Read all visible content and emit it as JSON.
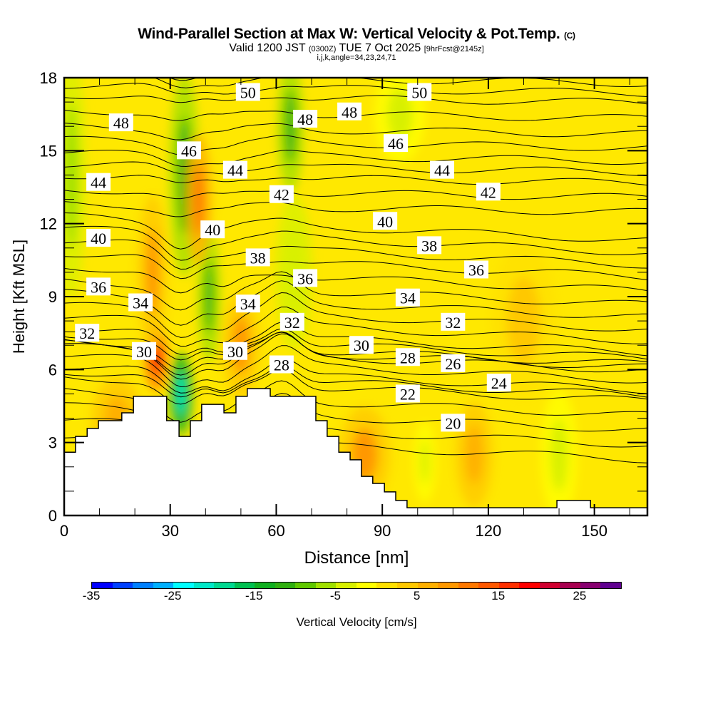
{
  "chart_data": {
    "type": "heatmap",
    "title": "Wind-Parallel Section at Max W: Vertical Velocity & Pot.Temp.",
    "title_mark": "(C)",
    "subtitle_main": "Valid 1200 JST",
    "subtitle_utc": "(0300Z)",
    "subtitle_date": "TUE 7 Oct 2025",
    "subtitle_fcst": "[9hrFcst@2145z]",
    "subtitle2": "i,j,k,angle=34,23,24,71",
    "xlabel": "Distance [nm]",
    "ylabel": "Height [Kft MSL]",
    "xlim": [
      0,
      165
    ],
    "ylim": [
      0,
      18
    ],
    "xticks": [
      "0",
      "30",
      "60",
      "90",
      "120",
      "150"
    ],
    "yticks": [
      "0",
      "3",
      "6",
      "9",
      "12",
      "15",
      "18"
    ],
    "colorbar": {
      "label": "Vertical Velocity [cm/s]",
      "range": [
        -35,
        30
      ],
      "step": 2.5,
      "tick_labels": [
        "-35",
        "-25",
        "-15",
        "-5",
        "5",
        "15",
        "25"
      ],
      "colors": [
        "#0000ff",
        "#0040ff",
        "#0080ff",
        "#00b0ff",
        "#00ffff",
        "#00e8c8",
        "#00d890",
        "#00c050",
        "#10b020",
        "#30b010",
        "#60c800",
        "#a0e000",
        "#d8f000",
        "#ffff00",
        "#ffe000",
        "#ffc800",
        "#ffb000",
        "#ff9800",
        "#ff7800",
        "#ff5800",
        "#ff3000",
        "#ff0000",
        "#d00030",
        "#a80050",
        "#880070",
        "#600090"
      ]
    },
    "w_features": [
      {
        "x": 2,
        "y": 14,
        "rx": 3,
        "ry": 5,
        "w": -7
      },
      {
        "x": 26,
        "y": 6.5,
        "rx": 2,
        "ry": 1.2,
        "w": 18
      },
      {
        "x": 25,
        "y": 10,
        "rx": 3,
        "ry": 3,
        "w": 8
      },
      {
        "x": 33,
        "y": 5,
        "rx": 2,
        "ry": 1.5,
        "w": -22
      },
      {
        "x": 34,
        "y": 14,
        "rx": 3,
        "ry": 4,
        "w": -12
      },
      {
        "x": 41,
        "y": 9,
        "rx": 2,
        "ry": 2.5,
        "w": -12
      },
      {
        "x": 38,
        "y": 13,
        "rx": 2.5,
        "ry": 2.5,
        "w": 10
      },
      {
        "x": 64,
        "y": 16,
        "rx": 2.5,
        "ry": 2.5,
        "w": -12
      },
      {
        "x": 65,
        "y": 10,
        "rx": 4,
        "ry": 3,
        "w": -5
      },
      {
        "x": 50,
        "y": 7,
        "rx": 4,
        "ry": 2,
        "w": 8
      },
      {
        "x": 85,
        "y": 2.5,
        "rx": 6,
        "ry": 1.8,
        "w": 8
      },
      {
        "x": 102,
        "y": 2.2,
        "rx": 2,
        "ry": 1.5,
        "w": -4
      },
      {
        "x": 116,
        "y": 2.5,
        "rx": 4,
        "ry": 2,
        "w": 5
      },
      {
        "x": 140,
        "y": 2.5,
        "rx": 4,
        "ry": 2.5,
        "w": -4
      },
      {
        "x": 95,
        "y": 16.5,
        "rx": 6,
        "ry": 1.8,
        "w": -4
      },
      {
        "x": 130,
        "y": 8,
        "rx": 8,
        "ry": 3,
        "w": 3
      },
      {
        "x": 15,
        "y": 4,
        "rx": 6,
        "ry": 1.5,
        "w": 5
      }
    ],
    "terrain": [
      [
        0,
        2.6
      ],
      [
        3.2,
        2.6
      ],
      [
        3.2,
        3.25
      ],
      [
        6.5,
        3.25
      ],
      [
        6.5,
        3.58
      ],
      [
        9.7,
        3.58
      ],
      [
        9.7,
        3.9
      ],
      [
        16.3,
        3.9
      ],
      [
        16.3,
        4.22
      ],
      [
        19.6,
        4.22
      ],
      [
        19.6,
        4.9
      ],
      [
        29,
        4.9
      ],
      [
        29,
        3.9
      ],
      [
        32.5,
        3.9
      ],
      [
        32.5,
        3.25
      ],
      [
        35.7,
        3.25
      ],
      [
        35.7,
        3.9
      ],
      [
        38.9,
        3.9
      ],
      [
        38.9,
        4.57
      ],
      [
        45.2,
        4.57
      ],
      [
        45.2,
        4.22
      ],
      [
        48.6,
        4.22
      ],
      [
        48.6,
        4.9
      ],
      [
        51.8,
        4.9
      ],
      [
        51.8,
        5.22
      ],
      [
        58.3,
        5.22
      ],
      [
        58.3,
        4.9
      ],
      [
        71.2,
        4.9
      ],
      [
        71.2,
        3.9
      ],
      [
        74.4,
        3.9
      ],
      [
        74.4,
        3.25
      ],
      [
        77.7,
        3.25
      ],
      [
        77.7,
        2.6
      ],
      [
        80.9,
        2.6
      ],
      [
        80.9,
        2.29
      ],
      [
        84.1,
        2.29
      ],
      [
        84.1,
        1.61
      ],
      [
        87.3,
        1.61
      ],
      [
        87.3,
        1.32
      ],
      [
        90.6,
        1.32
      ],
      [
        90.6,
        0.97
      ],
      [
        93.8,
        0.97
      ],
      [
        93.8,
        0.62
      ],
      [
        97,
        0.62
      ],
      [
        97,
        0.32
      ],
      [
        139.4,
        0.32
      ],
      [
        139.4,
        0.62
      ],
      [
        148.9,
        0.62
      ],
      [
        148.9,
        0.32
      ],
      [
        165,
        0.32
      ]
    ],
    "theta_right_heights": {
      "20": 3.8,
      "22": 5.0,
      "24": 5.45,
      "26": 6.25,
      "28": 6.5,
      "30": 7.0,
      "32": 7.95,
      "34": 8.95,
      "36": 10.1,
      "38": 11.1,
      "40": 12.1,
      "42": 13.3,
      "44": 14.2,
      "46": 15.3,
      "48": 16.6,
      "50": 17.4
    },
    "contour_labels": [
      {
        "text": "50",
        "x": 52,
        "y": 17.4
      },
      {
        "text": "50",
        "x": 100.5,
        "y": 17.4
      },
      {
        "text": "48",
        "x": 16.1,
        "y": 16.15
      },
      {
        "text": "48",
        "x": 68.2,
        "y": 16.3
      },
      {
        "text": "48",
        "x": 80.7,
        "y": 16.6
      },
      {
        "text": "46",
        "x": 35.3,
        "y": 15.0
      },
      {
        "text": "46",
        "x": 93.8,
        "y": 15.3
      },
      {
        "text": "44",
        "x": 9.7,
        "y": 13.7
      },
      {
        "text": "44",
        "x": 48.4,
        "y": 14.2
      },
      {
        "text": "44",
        "x": 106.9,
        "y": 14.2
      },
      {
        "text": "42",
        "x": 61.5,
        "y": 13.2
      },
      {
        "text": "42",
        "x": 120,
        "y": 13.3
      },
      {
        "text": "40",
        "x": 9.7,
        "y": 11.4
      },
      {
        "text": "40",
        "x": 42,
        "y": 11.75
      },
      {
        "text": "40",
        "x": 90.8,
        "y": 12.1
      },
      {
        "text": "38",
        "x": 54.8,
        "y": 10.6
      },
      {
        "text": "38",
        "x": 103.3,
        "y": 11.1
      },
      {
        "text": "36",
        "x": 9.7,
        "y": 9.4
      },
      {
        "text": "36",
        "x": 68.2,
        "y": 9.75
      },
      {
        "text": "36",
        "x": 116.6,
        "y": 10.1
      },
      {
        "text": "34",
        "x": 21.6,
        "y": 8.75
      },
      {
        "text": "34",
        "x": 52,
        "y": 8.7
      },
      {
        "text": "34",
        "x": 97.2,
        "y": 8.95
      },
      {
        "text": "32",
        "x": 6.5,
        "y": 7.5
      },
      {
        "text": "32",
        "x": 64.5,
        "y": 7.95
      },
      {
        "text": "32",
        "x": 110,
        "y": 7.95
      },
      {
        "text": "30",
        "x": 22.6,
        "y": 6.75
      },
      {
        "text": "30",
        "x": 48.4,
        "y": 6.75
      },
      {
        "text": "30",
        "x": 84.1,
        "y": 7.0
      },
      {
        "text": "28",
        "x": 61.5,
        "y": 6.2
      },
      {
        "text": "28",
        "x": 97.2,
        "y": 6.5
      },
      {
        "text": "26",
        "x": 110,
        "y": 6.25
      },
      {
        "text": "24",
        "x": 123,
        "y": 5.45
      },
      {
        "text": "22",
        "x": 97.2,
        "y": 5.0
      },
      {
        "text": "20",
        "x": 110,
        "y": 3.8
      }
    ]
  }
}
